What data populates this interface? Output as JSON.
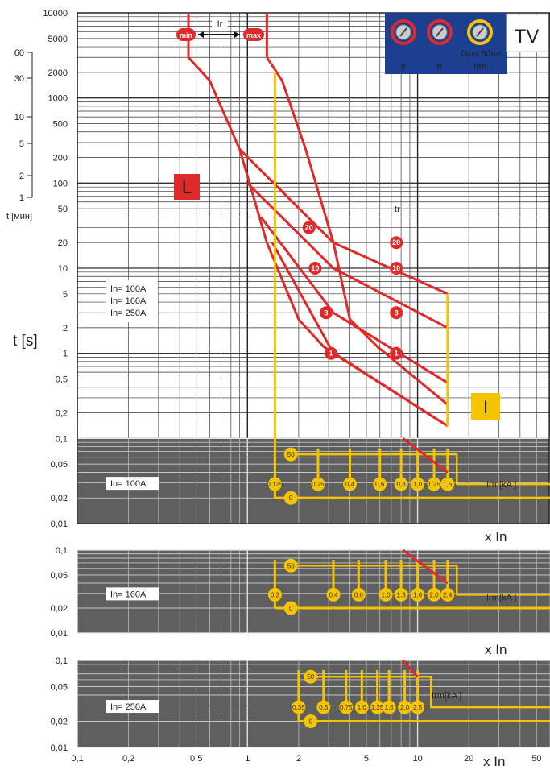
{
  "colors": {
    "red": "#e02a2a",
    "yellow": "#f5c400",
    "dark_band": "#5f5f5f",
    "panel_blue": "#1d3f8f",
    "grid": "#222222"
  },
  "top_caption": "",
  "y_axis_label": "t [s]",
  "x_axis_label": "x In",
  "minutes_label": "t [мин]",
  "minutes_ticks": [
    "60",
    "30",
    "10",
    "5",
    "2",
    "1"
  ],
  "x_ticks": [
    "0,1",
    "0,2",
    "0,5",
    "1",
    "2",
    "5",
    "10",
    "20",
    "50"
  ],
  "y_ticks_main": [
    "10000",
    "5000",
    "2000",
    "1000",
    "500",
    "200",
    "100",
    "50",
    "20",
    "10",
    "5",
    "2",
    "1",
    "0,5",
    "0,2",
    "0,1",
    "0,05",
    "0,02",
    "0,01"
  ],
  "y_ticks_sub": [
    "0,1",
    "0,05",
    "0,02",
    "0,01"
  ],
  "ratings_list": [
    "In= 100A",
    "In= 160A",
    "In= 250A"
  ],
  "ir_label": "Ir",
  "ir_min": "min",
  "ir_max": "max",
  "l_label": "L",
  "i_label": "I",
  "tr_label": "tr",
  "tr_badges": [
    "20",
    "10",
    "3",
    "1"
  ],
  "panel": {
    "tv": "TV",
    "ir": "Ir",
    "tr": "tr",
    "irm": "Irm",
    "ms0": "0ms",
    "ms50": "50ms"
  },
  "chart_data": {
    "type": "line",
    "x_scale": "log",
    "y_scale": "log",
    "xlim": [
      0.1,
      60
    ],
    "ylim": [
      0.01,
      10000
    ],
    "series": [
      {
        "name": "Ir min",
        "points": [
          [
            0.45,
            3000
          ],
          [
            0.6,
            1600
          ],
          [
            0.9,
            250
          ],
          [
            1.3,
            20
          ],
          [
            2.0,
            2.5
          ],
          [
            2.8,
            1.2
          ],
          [
            15,
            0.14
          ]
        ]
      },
      {
        "name": "Ir max",
        "points": [
          [
            1.3,
            3000
          ],
          [
            1.6,
            1600
          ],
          [
            2.2,
            250
          ],
          [
            3.2,
            20
          ],
          [
            4.0,
            2.5
          ],
          [
            5.8,
            1.2
          ],
          [
            15,
            0.25
          ]
        ]
      }
    ],
    "tr_lines": [
      {
        "tr": "20",
        "points": [
          [
            0.9,
            250
          ],
          [
            3.2,
            20
          ],
          [
            15,
            5
          ]
        ]
      },
      {
        "tr": "10",
        "points": [
          [
            1.0,
            100
          ],
          [
            3.2,
            10
          ],
          [
            15,
            2
          ]
        ]
      },
      {
        "tr": "3",
        "points": [
          [
            1.2,
            40
          ],
          [
            3.2,
            3
          ],
          [
            15,
            0.45
          ]
        ]
      },
      {
        "tr": "1",
        "points": [
          [
            1.4,
            20
          ],
          [
            3.2,
            1
          ],
          [
            15,
            0.14
          ]
        ]
      }
    ],
    "panels": [
      {
        "rating": "In= 100A",
        "label_unit": "Irm[kA ]",
        "irm_values": [
          "0,125",
          "0,25",
          "0,4",
          "0,6",
          "0,8",
          "1,0",
          "1,25",
          "1,5"
        ],
        "delay_values": [
          "50",
          "0"
        ]
      },
      {
        "rating": "In= 160A",
        "label_unit": "Irm[kA ]",
        "irm_values": [
          "0,2",
          "0,4",
          "0,6",
          "1,0",
          "1,3",
          "1,6",
          "2,0",
          "2,4"
        ],
        "delay_values": [
          "50",
          "0"
        ]
      },
      {
        "rating": "In= 250A",
        "label_unit": "Irm[kA ]",
        "irm_values": [
          "0,35",
          "0,5",
          "0,75",
          "1,0",
          "1,25",
          "1,5",
          "2,0",
          "2,5"
        ],
        "delay_values": [
          "50",
          "0"
        ]
      }
    ]
  }
}
